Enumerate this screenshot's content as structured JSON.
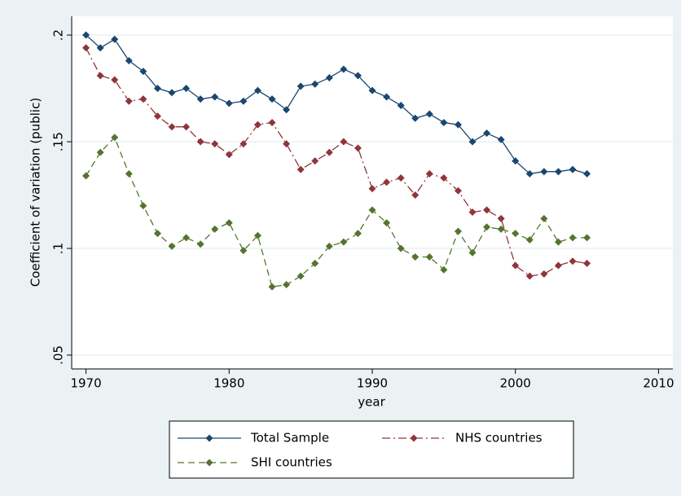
{
  "chart_data": {
    "type": "line",
    "x_label": "year",
    "y_label": "Coefficient of variation (public)",
    "x": [
      1970,
      1971,
      1972,
      1973,
      1974,
      1975,
      1976,
      1977,
      1978,
      1979,
      1980,
      1981,
      1982,
      1983,
      1984,
      1985,
      1986,
      1987,
      1988,
      1989,
      1990,
      1991,
      1992,
      1993,
      1994,
      1995,
      1996,
      1997,
      1998,
      1999,
      2000,
      2001,
      2002,
      2003,
      2004,
      2005
    ],
    "series": [
      {
        "name": "Total Sample",
        "color": "#1a476f",
        "dash": "solid",
        "values": [
          0.2,
          0.194,
          0.198,
          0.188,
          0.183,
          0.175,
          0.173,
          0.175,
          0.17,
          0.171,
          0.168,
          0.169,
          0.174,
          0.17,
          0.165,
          0.176,
          0.177,
          0.18,
          0.184,
          0.181,
          0.174,
          0.171,
          0.167,
          0.161,
          0.163,
          0.159,
          0.158,
          0.15,
          0.154,
          0.151,
          0.141,
          0.135,
          0.136,
          0.136,
          0.137,
          0.135
        ]
      },
      {
        "name": "NHS countries",
        "color": "#90353b",
        "dash": "dash-dot",
        "values": [
          0.194,
          0.181,
          0.179,
          0.169,
          0.17,
          0.162,
          0.157,
          0.157,
          0.15,
          0.149,
          0.144,
          0.149,
          0.158,
          0.159,
          0.149,
          0.137,
          0.141,
          0.145,
          0.15,
          0.147,
          0.128,
          0.131,
          0.133,
          0.125,
          0.135,
          0.133,
          0.127,
          0.117,
          0.118,
          0.114,
          0.092,
          0.087,
          0.088,
          0.092,
          0.094,
          0.093
        ]
      },
      {
        "name": "SHI countries",
        "color": "#55752f",
        "dash": "dash",
        "values": [
          0.134,
          0.145,
          0.152,
          0.135,
          0.12,
          0.107,
          0.101,
          0.105,
          0.102,
          0.109,
          0.112,
          0.099,
          0.106,
          0.082,
          0.083,
          0.087,
          0.093,
          0.101,
          0.103,
          0.107,
          0.118,
          0.112,
          0.1,
          0.096,
          0.096,
          0.09,
          0.108,
          0.098,
          0.11,
          0.109,
          0.107,
          0.104,
          0.114,
          0.103,
          0.105,
          0.105
        ]
      }
    ],
    "xlim": [
      1969,
      2011
    ],
    "xticks": [
      1970,
      1980,
      1990,
      2000,
      2010
    ],
    "ylim": [
      0.0435,
      0.2088
    ],
    "yticks": [
      {
        "value": 0.05,
        "label": ".05"
      },
      {
        "value": 0.1,
        "label": ".1"
      },
      {
        "value": 0.15,
        "label": ".15"
      },
      {
        "value": 0.2,
        "label": ".2"
      }
    ],
    "grid": true,
    "legend": "bottom"
  }
}
